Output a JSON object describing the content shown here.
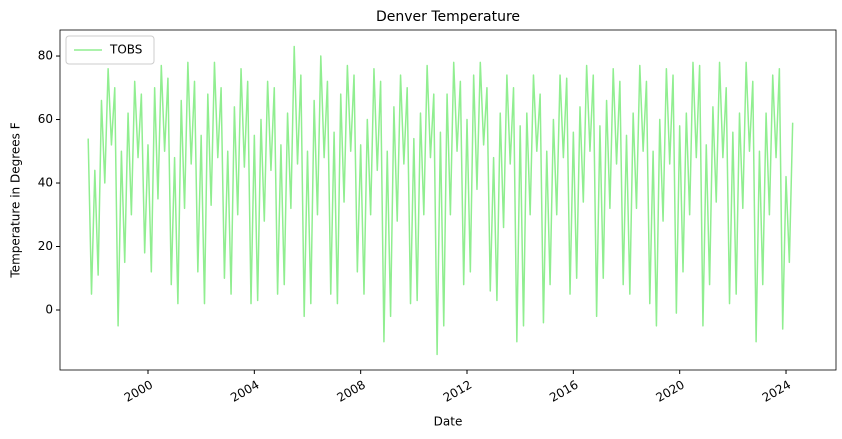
{
  "chart_data": {
    "type": "line",
    "title": "Denver Temperature",
    "x_label": "Date",
    "y_label": "Temperature in Degrees F",
    "x": [
      1997.75,
      1997.875,
      1998,
      1998.125,
      1998.25,
      1998.375,
      1998.5,
      1998.625,
      1998.75,
      1998.875,
      1999,
      1999.125,
      1999.25,
      1999.375,
      1999.5,
      1999.625,
      1999.75,
      1999.875,
      2000,
      2000.125,
      2000.25,
      2000.375,
      2000.5,
      2000.625,
      2000.75,
      2000.875,
      2001,
      2001.125,
      2001.25,
      2001.375,
      2001.5,
      2001.625,
      2001.75,
      2001.875,
      2002,
      2002.125,
      2002.25,
      2002.375,
      2002.5,
      2002.625,
      2002.75,
      2002.875,
      2003,
      2003.125,
      2003.25,
      2003.375,
      2003.5,
      2003.625,
      2003.75,
      2003.875,
      2004,
      2004.125,
      2004.25,
      2004.375,
      2004.5,
      2004.625,
      2004.75,
      2004.875,
      2005,
      2005.125,
      2005.25,
      2005.375,
      2005.5,
      2005.625,
      2005.75,
      2005.875,
      2006,
      2006.125,
      2006.25,
      2006.375,
      2006.5,
      2006.625,
      2006.75,
      2006.875,
      2007,
      2007.125,
      2007.25,
      2007.375,
      2007.5,
      2007.625,
      2007.75,
      2007.875,
      2008,
      2008.125,
      2008.25,
      2008.375,
      2008.5,
      2008.625,
      2008.75,
      2008.875,
      2009,
      2009.125,
      2009.25,
      2009.375,
      2009.5,
      2009.625,
      2009.75,
      2009.875,
      2010,
      2010.125,
      2010.25,
      2010.375,
      2010.5,
      2010.625,
      2010.75,
      2010.875,
      2011,
      2011.125,
      2011.25,
      2011.375,
      2011.5,
      2011.625,
      2011.75,
      2011.875,
      2012,
      2012.125,
      2012.25,
      2012.375,
      2012.5,
      2012.625,
      2012.75,
      2012.875,
      2013,
      2013.125,
      2013.25,
      2013.375,
      2013.5,
      2013.625,
      2013.75,
      2013.875,
      2014,
      2014.125,
      2014.25,
      2014.375,
      2014.5,
      2014.625,
      2014.75,
      2014.875,
      2015,
      2015.125,
      2015.25,
      2015.375,
      2015.5,
      2015.625,
      2015.75,
      2015.875,
      2016,
      2016.125,
      2016.25,
      2016.375,
      2016.5,
      2016.625,
      2016.75,
      2016.875,
      2017,
      2017.125,
      2017.25,
      2017.375,
      2017.5,
      2017.625,
      2017.75,
      2017.875,
      2018,
      2018.125,
      2018.25,
      2018.375,
      2018.5,
      2018.625,
      2018.75,
      2018.875,
      2019,
      2019.125,
      2019.25,
      2019.375,
      2019.5,
      2019.625,
      2019.75,
      2019.875,
      2020,
      2020.125,
      2020.25,
      2020.375,
      2020.5,
      2020.625,
      2020.75,
      2020.875,
      2021,
      2021.125,
      2021.25,
      2021.375,
      2021.5,
      2021.625,
      2021.75,
      2021.875,
      2022,
      2022.125,
      2022.25,
      2022.375,
      2022.5,
      2022.625,
      2022.75,
      2022.875,
      2023,
      2023.125,
      2023.25,
      2023.375,
      2023.5,
      2023.625,
      2023.75,
      2023.875,
      2024,
      2024.125,
      2024.25
    ],
    "series": [
      {
        "name": "TOBS",
        "color": "#90ee90",
        "values": [
          54,
          5,
          44,
          11,
          66,
          40,
          76,
          52,
          70,
          -5,
          50,
          15,
          62,
          30,
          72,
          48,
          68,
          18,
          52,
          12,
          70,
          35,
          77,
          50,
          73,
          8,
          48,
          2,
          66,
          32,
          78,
          46,
          72,
          12,
          55,
          2,
          68,
          33,
          78,
          48,
          70,
          10,
          50,
          5,
          64,
          30,
          76,
          45,
          72,
          2,
          55,
          3,
          60,
          28,
          72,
          44,
          70,
          5,
          52,
          8,
          62,
          32,
          83,
          46,
          74,
          -2,
          50,
          2,
          66,
          30,
          80,
          48,
          72,
          5,
          56,
          2,
          68,
          34,
          77,
          50,
          74,
          12,
          52,
          5,
          60,
          30,
          76,
          44,
          72,
          -10,
          50,
          -2,
          64,
          28,
          74,
          46,
          70,
          2,
          54,
          3,
          62,
          30,
          77,
          48,
          68,
          -14,
          56,
          -5,
          68,
          30,
          78,
          50,
          72,
          8,
          60,
          12,
          74,
          38,
          78,
          52,
          70,
          6,
          48,
          3,
          62,
          26,
          74,
          46,
          70,
          -10,
          58,
          -5,
          62,
          30,
          74,
          50,
          68,
          -4,
          50,
          8,
          60,
          30,
          74,
          48,
          73,
          5,
          56,
          10,
          64,
          34,
          77,
          50,
          74,
          -2,
          58,
          10,
          66,
          32,
          76,
          46,
          72,
          8,
          55,
          5,
          62,
          32,
          77,
          50,
          72,
          2,
          50,
          -5,
          60,
          28,
          76,
          46,
          74,
          -1,
          58,
          12,
          62,
          30,
          78,
          48,
          77,
          -5,
          52,
          8,
          64,
          34,
          78,
          48,
          70,
          2,
          56,
          5,
          62,
          32,
          78,
          50,
          72,
          -10,
          50,
          8,
          62,
          30,
          74,
          48,
          76,
          -6,
          42,
          15,
          59
        ]
      }
    ],
    "xlim": [
      1996.69,
      2025.88
    ],
    "xticks": [
      2000,
      2004,
      2008,
      2012,
      2016,
      2020,
      2024
    ],
    "ylim": [
      -18.9,
      88.2
    ],
    "yticks": [
      0,
      20,
      40,
      60,
      80
    ],
    "legend": "upper left"
  }
}
